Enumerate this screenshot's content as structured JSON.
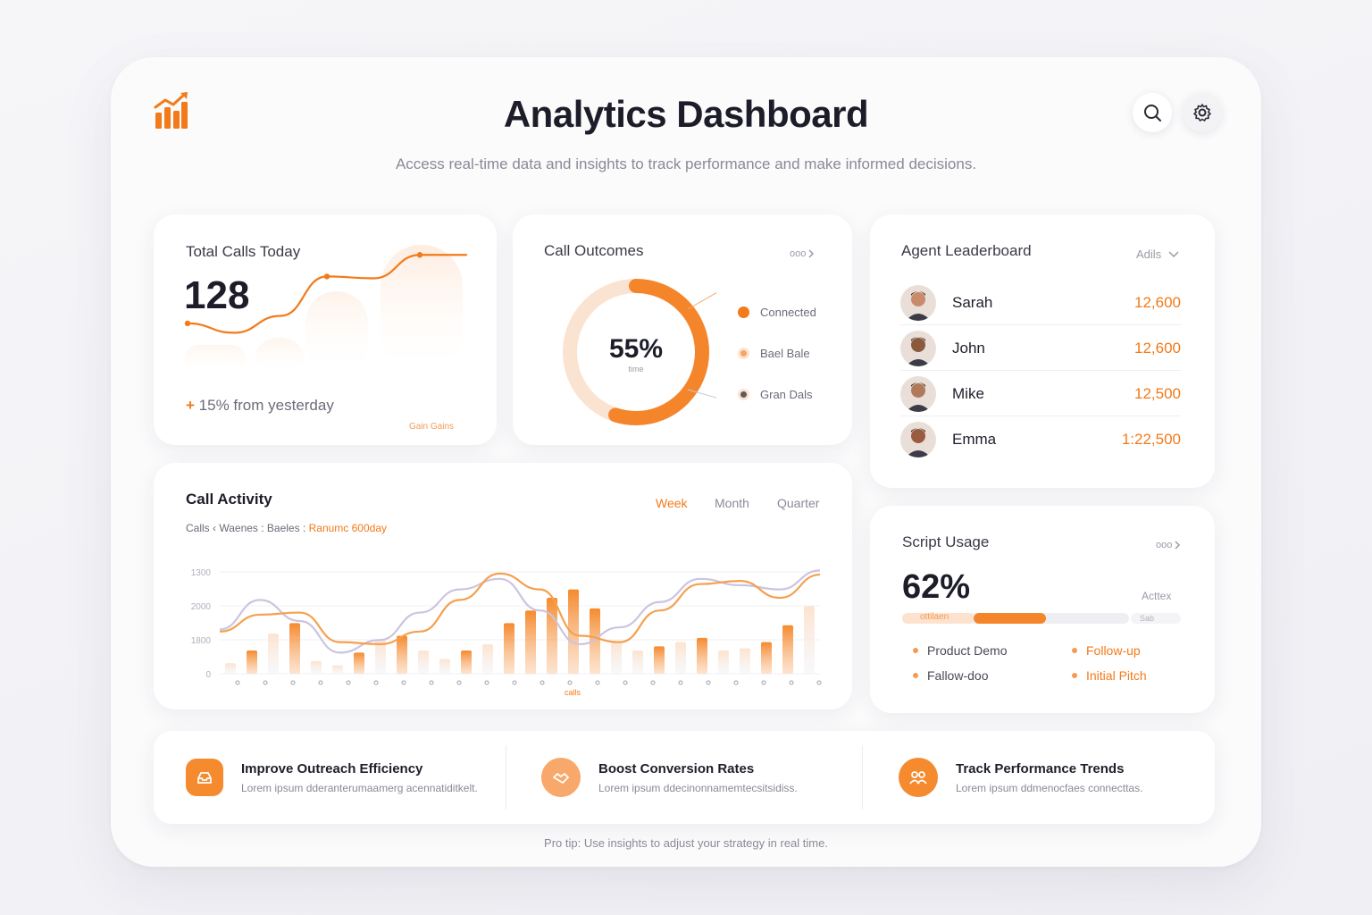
{
  "header": {
    "title": "Analytics Dashboard",
    "subtitle": "Access real-time data and insights to track performance and make informed decisions.",
    "logo_icon": "bar-chart-trend-icon",
    "search_icon": "search-icon",
    "settings_icon": "gear-icon"
  },
  "total_calls": {
    "title": "Total Calls Today",
    "value": "128",
    "delta_sign": "+",
    "delta_text": "15% from yesterday",
    "footnote": "Gain Gains",
    "sparkline": [
      0.22,
      0.12,
      0.3,
      0.72,
      0.7,
      0.95,
      0.95
    ]
  },
  "call_outcomes": {
    "title": "Call Outcomes",
    "more_icon": "chevron-right-icon",
    "more_label": "ooo",
    "center_value": "55%",
    "center_sub": "time",
    "connected_fraction": 0.55,
    "legend": [
      {
        "label": "Connected",
        "color": "#f27a1a"
      },
      {
        "label": "Bael Bale",
        "color": "#f5a568"
      },
      {
        "label": "Gran Dals",
        "color": "#5a5a66"
      }
    ]
  },
  "leaderboard": {
    "title": "Agent Leaderboard",
    "filter_label": "Adils",
    "agents": [
      {
        "name": "Sarah",
        "score": "12,600"
      },
      {
        "name": "John",
        "score": "12,600"
      },
      {
        "name": "Mike",
        "score": "12,500"
      },
      {
        "name": "Emma",
        "score": "1:22,500"
      }
    ]
  },
  "call_activity": {
    "title": "Call Activity",
    "subtitle_plain": "Calls ‹ Waenes : Baeles : ",
    "subtitle_accent": "Ranumc 600day",
    "tabs": [
      {
        "label": "Week",
        "active": true
      },
      {
        "label": "Month",
        "active": false
      },
      {
        "label": "Quarter",
        "active": false
      }
    ],
    "x_caption": "calls",
    "chart_data": {
      "type": "bar",
      "ylabel_ticks": [
        "1300",
        "2000",
        "1800",
        "0"
      ],
      "bars": [
        0.1,
        0.22,
        0.38,
        0.48,
        0.12,
        0.08,
        0.2,
        0.32,
        0.36,
        0.22,
        0.14,
        0.22,
        0.28,
        0.48,
        0.6,
        0.72,
        0.8,
        0.62,
        0.3,
        0.22,
        0.26,
        0.3,
        0.34,
        0.22,
        0.24,
        0.3,
        0.46,
        0.64
      ],
      "bar_strong": [
        false,
        true,
        false,
        true,
        false,
        false,
        true,
        false,
        true,
        false,
        false,
        true,
        false,
        true,
        true,
        true,
        true,
        true,
        false,
        false,
        true,
        false,
        true,
        false,
        false,
        true,
        true,
        false
      ],
      "line_orange": [
        0.4,
        0.56,
        0.58,
        0.3,
        0.28,
        0.4,
        0.7,
        0.95,
        0.8,
        0.36,
        0.3,
        0.6,
        0.85,
        0.88,
        0.72,
        0.94
      ],
      "line_lavender": [
        0.42,
        0.7,
        0.5,
        0.2,
        0.32,
        0.58,
        0.8,
        0.9,
        0.6,
        0.28,
        0.44,
        0.68,
        0.9,
        0.84,
        0.8,
        0.98
      ]
    }
  },
  "script_usage": {
    "title": "Script Usage",
    "more_label": "ooo",
    "value": "62%",
    "side_label": "Acttex",
    "bar_label": "ottilaen",
    "bar_end_label": "Sab",
    "bar_fraction": 0.62,
    "legend": [
      {
        "label": "Product Demo",
        "accent": false
      },
      {
        "label": "Follow-up",
        "accent": true
      },
      {
        "label": "Fallow-doo",
        "accent": false
      },
      {
        "label": "Initial Pitch",
        "accent": true
      }
    ]
  },
  "tips": [
    {
      "icon": "inbox-tray-icon",
      "title": "Improve Outreach Efficiency",
      "desc": "Lorem ipsum dderanterumaamerg acennatiditkelt."
    },
    {
      "icon": "handshake-icon",
      "title": "Boost Conversion Rates",
      "desc": "Lorem ipsum ddecinonnamemtecsitsidiss."
    },
    {
      "icon": "team-icon",
      "title": "Track Performance Trends",
      "desc": "Lorem ipsum ddmenocfaes connecttas."
    }
  ],
  "footer": {
    "protip": "Pro tip: Use insights to adjust your strategy in real time."
  },
  "colors": {
    "accent": "#f27a1a",
    "accent_light": "#fbd7bc",
    "lavender": "#c9c3df"
  }
}
